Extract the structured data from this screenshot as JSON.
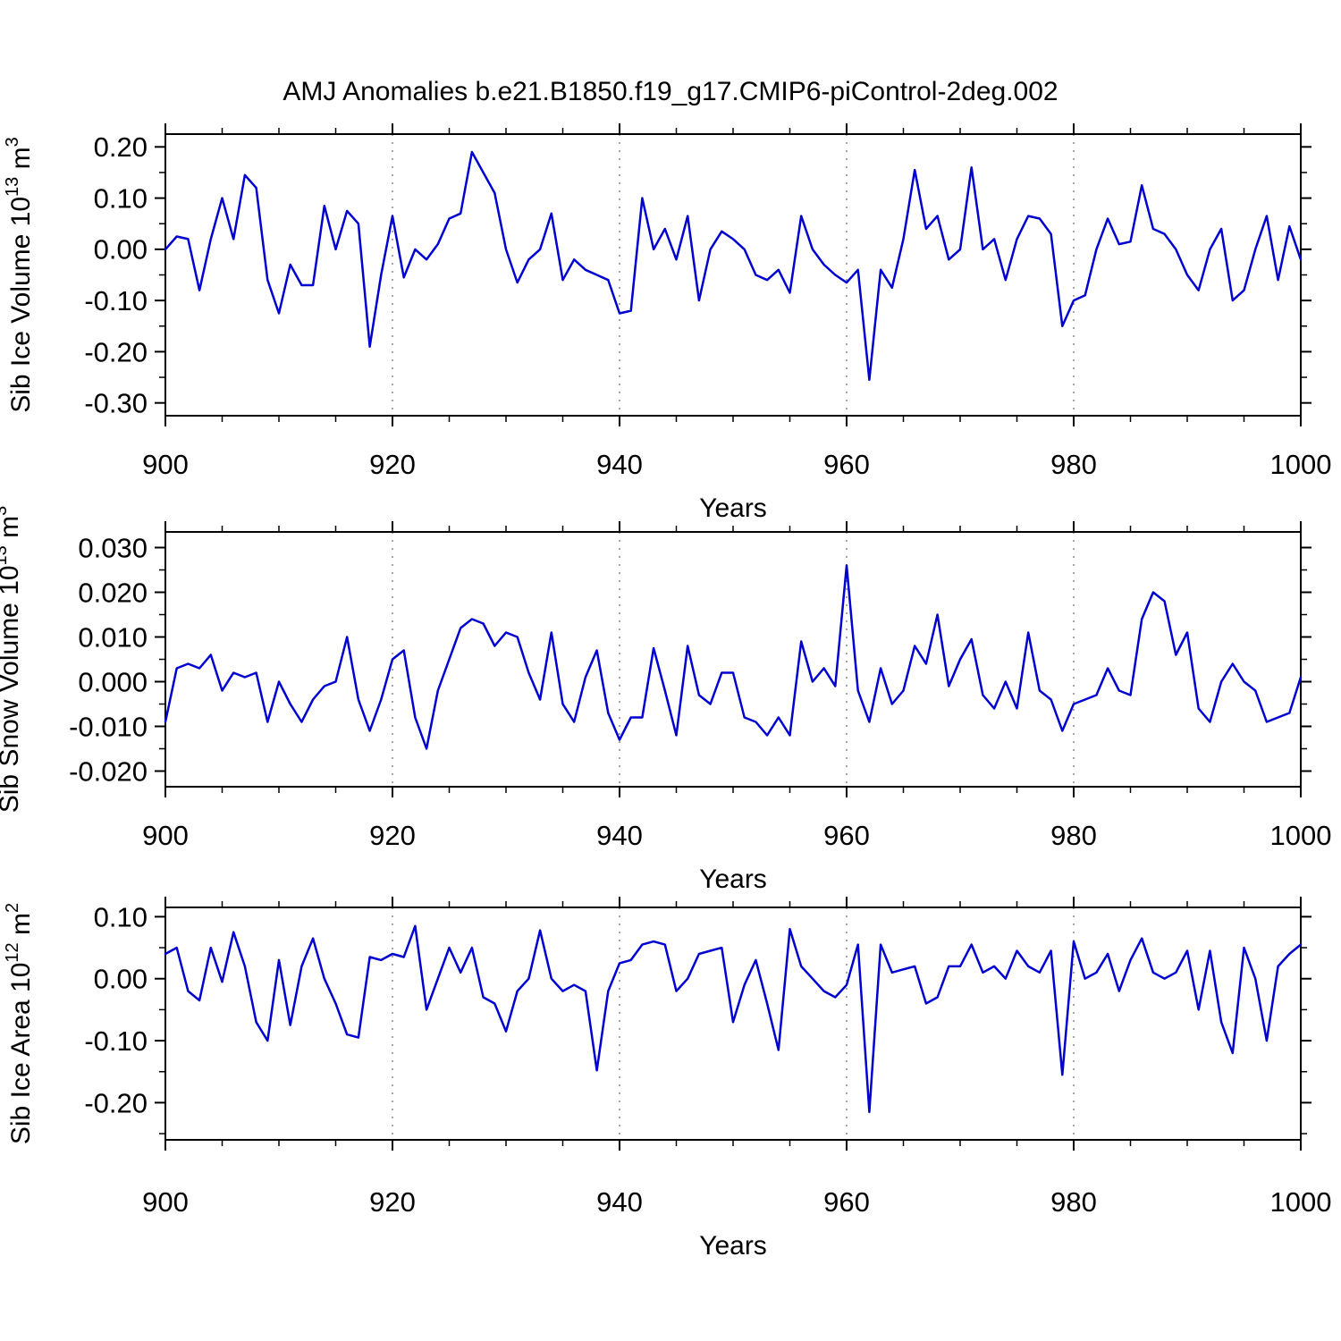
{
  "title": "AMJ Anomalies b.e21.B1850.f19_g17.CMIP6-piControl-2deg.002",
  "colors": {
    "line": "#0000d0",
    "grid": "#808080",
    "axis": "#000000"
  },
  "chart_data": [
    {
      "type": "line",
      "name": "sib-ice-volume",
      "xlabel": "Years",
      "ylabel_parts": [
        {
          "t": "Sib Ice Volume 10"
        },
        {
          "t": "13",
          "sup": true
        },
        {
          "t": " m"
        },
        {
          "t": "3",
          "sup": true
        }
      ],
      "xlim": [
        900,
        1000
      ],
      "ylim": [
        -0.325,
        0.225
      ],
      "yticks": [
        0.2,
        0.1,
        0.0,
        -0.1,
        -0.2,
        -0.3
      ],
      "ytick_labels": [
        "0.20",
        "0.10",
        "0.00",
        "-0.10",
        "-0.20",
        "-0.30"
      ],
      "y_minor_step": 0.05,
      "xticks": [
        900,
        920,
        940,
        960,
        980,
        1000
      ],
      "xtick_labels": [
        "900",
        "920",
        "940",
        "960",
        "980",
        "1000"
      ],
      "x_minor_step": 5,
      "grid_x": [
        920,
        940,
        960,
        980
      ],
      "x_start": 900,
      "x_step": 1,
      "values": [
        0.0,
        0.025,
        0.02,
        -0.08,
        0.02,
        0.1,
        0.02,
        0.145,
        0.12,
        -0.06,
        -0.125,
        -0.03,
        -0.07,
        -0.07,
        0.085,
        0.0,
        0.075,
        0.05,
        -0.19,
        -0.05,
        0.065,
        -0.055,
        0.0,
        -0.02,
        0.01,
        0.06,
        0.07,
        0.19,
        0.15,
        0.11,
        0.0,
        -0.065,
        -0.02,
        0.0,
        0.07,
        -0.06,
        -0.02,
        -0.04,
        -0.05,
        -0.06,
        -0.125,
        -0.12,
        0.1,
        0.0,
        0.04,
        -0.02,
        0.065,
        -0.1,
        0.0,
        0.035,
        0.02,
        0.0,
        -0.05,
        -0.06,
        -0.04,
        -0.085,
        0.065,
        0.0,
        -0.03,
        -0.05,
        -0.065,
        -0.04,
        -0.255,
        -0.04,
        -0.075,
        0.02,
        0.155,
        0.04,
        0.065,
        -0.02,
        0.0,
        0.16,
        0.0,
        0.02,
        -0.06,
        0.02,
        0.065,
        0.06,
        0.03,
        -0.15,
        -0.1,
        -0.09,
        0.0,
        0.06,
        0.01,
        0.015,
        0.125,
        0.04,
        0.03,
        0.0,
        -0.05,
        -0.08,
        0.0,
        0.04,
        -0.1,
        -0.08,
        0.0,
        0.065,
        -0.06,
        0.045,
        -0.02
      ]
    },
    {
      "type": "line",
      "name": "sib-snow-volume",
      "xlabel": "Years",
      "ylabel_parts": [
        {
          "t": "Sib Snow Volume 10"
        },
        {
          "t": "13",
          "sup": true
        },
        {
          "t": " m"
        },
        {
          "t": "3",
          "sup": true
        }
      ],
      "xlim": [
        900,
        1000
      ],
      "ylim": [
        -0.0235,
        0.0335
      ],
      "yticks": [
        0.03,
        0.02,
        0.01,
        0.0,
        -0.01,
        -0.02
      ],
      "ytick_labels": [
        "0.030",
        "0.020",
        "0.010",
        "0.000",
        "-0.010",
        "-0.020"
      ],
      "y_minor_step": 0.005,
      "xticks": [
        900,
        920,
        940,
        960,
        980,
        1000
      ],
      "xtick_labels": [
        "900",
        "920",
        "940",
        "960",
        "980",
        "1000"
      ],
      "x_minor_step": 5,
      "grid_x": [
        920,
        940,
        960,
        980
      ],
      "x_start": 900,
      "x_step": 1,
      "values": [
        -0.009,
        0.003,
        0.004,
        0.003,
        0.006,
        -0.002,
        0.002,
        0.001,
        0.002,
        -0.009,
        0.0,
        -0.005,
        -0.009,
        -0.004,
        -0.001,
        0.0,
        0.01,
        -0.004,
        -0.011,
        -0.004,
        0.005,
        0.007,
        -0.008,
        -0.015,
        -0.002,
        0.005,
        0.012,
        0.014,
        0.013,
        0.008,
        0.011,
        0.01,
        0.002,
        -0.004,
        0.011,
        -0.005,
        -0.009,
        0.001,
        0.007,
        -0.007,
        -0.013,
        -0.008,
        -0.008,
        0.0075,
        -0.002,
        -0.012,
        0.008,
        -0.003,
        -0.005,
        0.002,
        0.002,
        -0.008,
        -0.009,
        -0.012,
        -0.008,
        -0.012,
        0.009,
        0.0,
        0.003,
        -0.001,
        0.026,
        -0.002,
        -0.009,
        0.003,
        -0.005,
        -0.002,
        0.008,
        0.004,
        0.015,
        -0.001,
        0.005,
        0.0095,
        -0.003,
        -0.006,
        0.0,
        -0.006,
        0.011,
        -0.002,
        -0.004,
        -0.011,
        -0.005,
        -0.004,
        -0.003,
        0.003,
        -0.002,
        -0.003,
        0.014,
        0.02,
        0.018,
        0.006,
        0.011,
        -0.006,
        -0.009,
        0.0,
        0.004,
        0.0,
        -0.002,
        -0.009,
        -0.008,
        -0.007,
        0.001
      ]
    },
    {
      "type": "line",
      "name": "sib-ice-area",
      "xlabel": "Years",
      "ylabel_parts": [
        {
          "t": "Sib Ice Area 10"
        },
        {
          "t": "12",
          "sup": true
        },
        {
          "t": " m"
        },
        {
          "t": "2",
          "sup": true
        }
      ],
      "xlim": [
        900,
        1000
      ],
      "ylim": [
        -0.26,
        0.115
      ],
      "yticks": [
        0.1,
        0.0,
        -0.1,
        -0.2
      ],
      "ytick_labels": [
        "0.10",
        "0.00",
        "-0.10",
        "-0.20"
      ],
      "y_minor_step": 0.05,
      "xticks": [
        900,
        920,
        940,
        960,
        980,
        1000
      ],
      "xtick_labels": [
        "900",
        "920",
        "940",
        "960",
        "980",
        "1000"
      ],
      "x_minor_step": 5,
      "grid_x": [
        920,
        940,
        960,
        980
      ],
      "x_start": 900,
      "x_step": 1,
      "values": [
        0.04,
        0.05,
        -0.02,
        -0.035,
        0.05,
        -0.005,
        0.075,
        0.02,
        -0.07,
        -0.1,
        0.03,
        -0.075,
        0.02,
        0.065,
        0.0,
        -0.04,
        -0.09,
        -0.095,
        0.035,
        0.03,
        0.04,
        0.035,
        0.085,
        -0.05,
        0.0,
        0.05,
        0.01,
        0.05,
        -0.03,
        -0.04,
        -0.085,
        -0.02,
        0.0,
        0.078,
        0.0,
        -0.02,
        -0.01,
        -0.02,
        -0.148,
        -0.02,
        0.025,
        0.03,
        0.055,
        0.06,
        0.055,
        -0.02,
        0.0,
        0.04,
        0.045,
        0.05,
        -0.07,
        -0.01,
        0.03,
        -0.04,
        -0.115,
        0.08,
        0.02,
        0.0,
        -0.02,
        -0.03,
        -0.01,
        0.055,
        -0.215,
        0.055,
        0.01,
        0.015,
        0.02,
        -0.04,
        -0.03,
        0.02,
        0.02,
        0.055,
        0.01,
        0.02,
        0.0,
        0.045,
        0.02,
        0.01,
        0.045,
        -0.155,
        0.06,
        0.0,
        0.01,
        0.04,
        -0.02,
        0.03,
        0.065,
        0.01,
        0.0,
        0.01,
        0.045,
        -0.05,
        0.045,
        -0.07,
        -0.12,
        0.05,
        0.0,
        -0.1,
        0.02,
        0.04,
        0.055
      ]
    }
  ]
}
